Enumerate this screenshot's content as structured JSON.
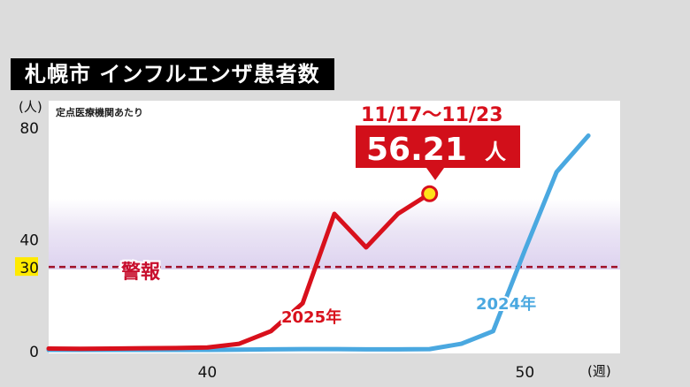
{
  "title": "札幌市 インフルエンザ患者数",
  "chart_data": {
    "type": "line",
    "ylabel": "(人)",
    "xlabel": "(週)",
    "note": "定点医療機関あたり",
    "ylim": [
      0,
      80
    ],
    "xlim": [
      35,
      53
    ],
    "y_ticks": [
      {
        "value": 0,
        "label": "0"
      },
      {
        "value": 30,
        "label": "30"
      },
      {
        "value": 40,
        "label": "40"
      },
      {
        "value": 80,
        "label": "80"
      }
    ],
    "x_ticks": [
      {
        "value": 40,
        "label": "40"
      },
      {
        "value": 50,
        "label": "50"
      }
    ],
    "warning": {
      "value": 30,
      "label": "警報"
    },
    "series": [
      {
        "name": "2025年",
        "color": "#d8101c",
        "x": [
          35,
          36,
          37,
          38,
          39,
          40,
          41,
          42,
          43,
          44,
          45,
          46,
          47
        ],
        "y": [
          0.8,
          0.7,
          0.8,
          0.9,
          1,
          1.2,
          2.5,
          7,
          17,
          49,
          37,
          49,
          56.21
        ]
      },
      {
        "name": "2024年",
        "color": "#4aa8e0",
        "x": [
          35,
          36,
          37,
          38,
          39,
          40,
          41,
          42,
          43,
          44,
          45,
          46,
          47,
          48,
          49,
          50,
          51,
          52
        ],
        "y": [
          0.3,
          0.3,
          0.3,
          0.3,
          0.3,
          0.3,
          0.4,
          0.5,
          0.6,
          0.6,
          0.5,
          0.5,
          0.6,
          2.5,
          7,
          36,
          64,
          77
        ]
      }
    ],
    "callout": {
      "date": "11/17〜11/23",
      "value": "56.21",
      "unit": "人",
      "x": 47,
      "y": 56.21
    }
  }
}
